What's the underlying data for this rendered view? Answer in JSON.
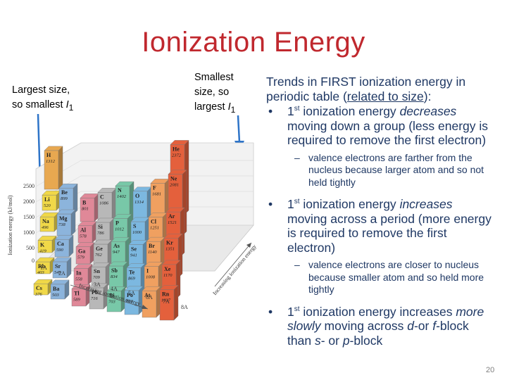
{
  "slide": {
    "title": "Ionization Energy",
    "page_number": "20"
  },
  "left_note": {
    "line1": "Largest size,",
    "line2": "so smallest ",
    "symbol": "I",
    "sub": "1"
  },
  "mid_note": {
    "line1": "Smallest",
    "line2": "size, so",
    "line3": "largest ",
    "symbol": "I",
    "sub": "1"
  },
  "right": {
    "heading_a": "Trends in ",
    "heading_b": "FIRST ionization energy",
    "heading_c": " in periodic table (",
    "heading_d": "related to size",
    "heading_e": "):",
    "bullets": [
      {
        "sup": "st",
        "pre": "1",
        "a": " ionization energy ",
        "em": "decreases",
        "b": " moving down a group (less energy is required to remove the first electron)",
        "sub": "valence electrons are farther from the nucleus because larger atom and so not held tightly"
      },
      {
        "sup": "st",
        "pre": "1",
        "a": " ionization energy ",
        "em": "increases",
        "b": " moving across a period (more energy is required to remove the first electron)",
        "sub": "valence electrons are closer to nucleus because smaller atom and so held more tightly"
      },
      {
        "sup": "st",
        "pre": "1",
        "a": " ionization energy increases ",
        "em": "more slowly",
        "b": " moving across ",
        "em2": "d",
        "c": "-or ",
        "em3": "f",
        "d": "-block than ",
        "em4": "s",
        "e": "- or ",
        "em5": "p",
        "f": "-block"
      }
    ]
  },
  "figure": {
    "y_axis_label": "Ionization energy (kJ/mol)",
    "y_ticks": [
      "2500",
      "2000",
      "1500",
      "1000",
      "500",
      "0"
    ],
    "x_axis_label": "Increasing ionization energy",
    "depth_axis_label": "Increasing ionization energy",
    "group_labels": [
      "1A",
      "2A",
      "3A",
      "4A",
      "5A",
      "6A",
      "7A",
      "8A"
    ],
    "elements": [
      {
        "sym": "H",
        "val": "1312",
        "color": "#e8a850"
      },
      {
        "sym": "He",
        "val": "2372",
        "color": "#e4603c"
      },
      {
        "sym": "Li",
        "val": "520",
        "color": "#f0d848"
      },
      {
        "sym": "Be",
        "val": "899",
        "color": "#8cb4dc"
      },
      {
        "sym": "Na",
        "val": "496",
        "color": "#f0d848"
      },
      {
        "sym": "Mg",
        "val": "738",
        "color": "#8cb4dc"
      },
      {
        "sym": "K",
        "val": "419",
        "color": "#f0d848"
      },
      {
        "sym": "Ca",
        "val": "590",
        "color": "#8cb4dc"
      },
      {
        "sym": "Rb",
        "val": "403",
        "color": "#f0d848"
      },
      {
        "sym": "Sr",
        "val": "549",
        "color": "#8cb4dc"
      },
      {
        "sym": "Cs",
        "val": "376",
        "color": "#f0d848"
      },
      {
        "sym": "Ba",
        "val": "503",
        "color": "#8cb4dc"
      },
      {
        "sym": "B",
        "val": "801",
        "color": "#e08898"
      },
      {
        "sym": "C",
        "val": "1086",
        "color": "#b8b8b8"
      },
      {
        "sym": "N",
        "val": "1402",
        "color": "#78c8a8"
      },
      {
        "sym": "O",
        "val": "1314",
        "color": "#7cb8e0"
      },
      {
        "sym": "F",
        "val": "1681",
        "color": "#f0a060"
      },
      {
        "sym": "Ne",
        "val": "2081",
        "color": "#e4603c"
      },
      {
        "sym": "Al",
        "val": "578",
        "color": "#e08898"
      },
      {
        "sym": "Si",
        "val": "786",
        "color": "#b8b8b8"
      },
      {
        "sym": "P",
        "val": "1012",
        "color": "#78c8a8"
      },
      {
        "sym": "S",
        "val": "1000",
        "color": "#7cb8e0"
      },
      {
        "sym": "Cl",
        "val": "1251",
        "color": "#f0a060"
      },
      {
        "sym": "Ar",
        "val": "1521",
        "color": "#e4603c"
      },
      {
        "sym": "Ga",
        "val": "579",
        "color": "#e08898"
      },
      {
        "sym": "Ge",
        "val": "762",
        "color": "#b8b8b8"
      },
      {
        "sym": "As",
        "val": "947",
        "color": "#78c8a8"
      },
      {
        "sym": "Se",
        "val": "941",
        "color": "#7cb8e0"
      },
      {
        "sym": "Br",
        "val": "1140",
        "color": "#f0a060"
      },
      {
        "sym": "Kr",
        "val": "1351",
        "color": "#e4603c"
      },
      {
        "sym": "In",
        "val": "558",
        "color": "#e08898"
      },
      {
        "sym": "Sn",
        "val": "709",
        "color": "#b8b8b8"
      },
      {
        "sym": "Sb",
        "val": "834",
        "color": "#78c8a8"
      },
      {
        "sym": "Te",
        "val": "869",
        "color": "#7cb8e0"
      },
      {
        "sym": "I",
        "val": "1008",
        "color": "#f0a060"
      },
      {
        "sym": "Xe",
        "val": "1170",
        "color": "#e4603c"
      },
      {
        "sym": "Tl",
        "val": "589",
        "color": "#e08898"
      },
      {
        "sym": "Pb",
        "val": "716",
        "color": "#b8b8b8"
      },
      {
        "sym": "Bi",
        "val": "703",
        "color": "#78c8a8"
      },
      {
        "sym": "Po",
        "val": "812",
        "color": "#7cb8e0"
      },
      {
        "sym": "At",
        "val": "",
        "color": "#f0a060"
      },
      {
        "sym": "Rn",
        "val": "1037",
        "color": "#e4603c"
      }
    ]
  }
}
